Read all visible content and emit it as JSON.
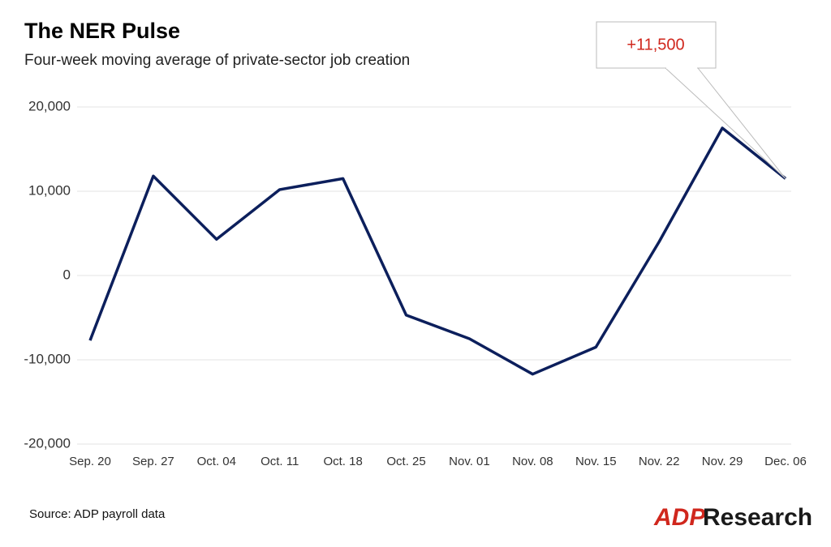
{
  "chart_data": {
    "type": "line",
    "title": "The NER Pulse",
    "subtitle": "Four-week moving average of private-sector job creation",
    "categories": [
      "Sep. 20",
      "Sep. 27",
      "Oct. 04",
      "Oct. 11",
      "Oct. 18",
      "Oct. 25",
      "Nov. 01",
      "Nov. 08",
      "Nov. 15",
      "Nov. 22",
      "Nov. 29",
      "Dec. 06"
    ],
    "series": [
      {
        "color": "#0c1f5c",
        "values": [
          -7700,
          11800,
          4300,
          10200,
          11500,
          -4700,
          -7500,
          -11700,
          -8500,
          4000,
          17500,
          11500
        ]
      }
    ],
    "ylim": [
      -20000,
      20000
    ],
    "yticks": [
      {
        "value": -20000,
        "label": "-20,000"
      },
      {
        "value": -10000,
        "label": "-10,000"
      },
      0,
      {
        "value": 10000,
        "label": "10,000"
      },
      {
        "value": 20000,
        "label": "20,000"
      }
    ],
    "grid": true,
    "annotation": "+11,500",
    "source": "Source: ADP payroll data",
    "logo": {
      "brand": "ADP",
      "name": "Research"
    }
  }
}
